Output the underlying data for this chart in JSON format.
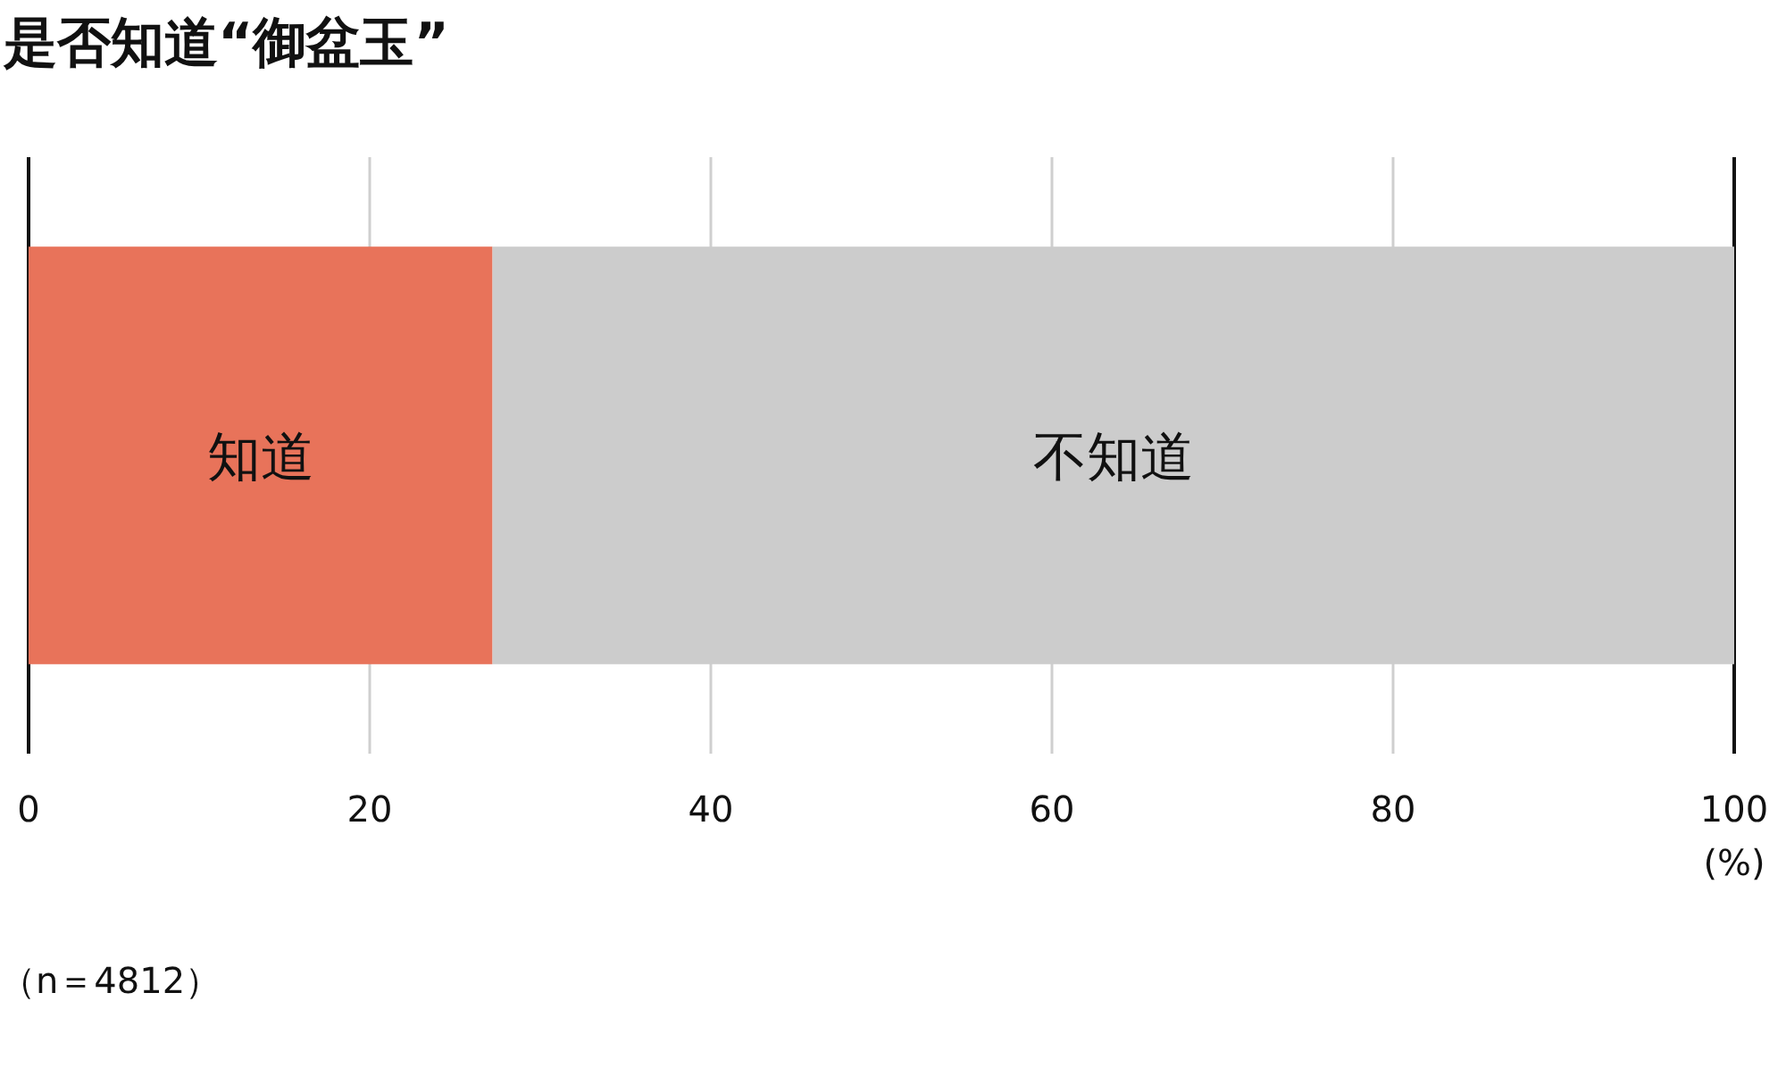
{
  "chart_data": {
    "type": "bar",
    "title": "是否知道“御盆玉”",
    "orientation": "horizontal",
    "stacked": true,
    "categories": [
      null
    ],
    "series": [
      {
        "name": "知道",
        "color": "#e8735a",
        "values": [
          27.2
        ]
      },
      {
        "name": "不知道",
        "color": "#cccccc",
        "values": [
          72.8
        ]
      }
    ],
    "xlim": [
      0,
      100
    ],
    "xticks": [
      0,
      20,
      40,
      60,
      80,
      100
    ],
    "xlabel": "(%)",
    "grid": "x",
    "annotations": [
      "（n＝4812）"
    ]
  }
}
